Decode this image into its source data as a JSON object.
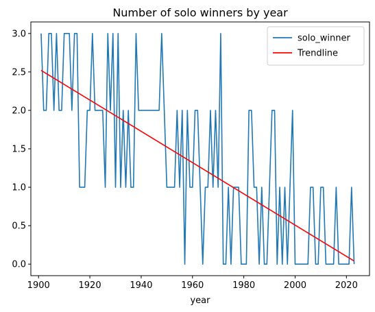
{
  "chart_data": {
    "type": "line",
    "title": "Number of solo winners by year",
    "xlabel": "year",
    "ylabel": "",
    "xlim": [
      1897,
      2029
    ],
    "ylim": [
      -0.15,
      3.15
    ],
    "xticks": [
      1900,
      1920,
      1940,
      1960,
      1980,
      2000,
      2020
    ],
    "xtick_labels": [
      "1900",
      "1920",
      "1940",
      "1960",
      "1980",
      "2000",
      "2020"
    ],
    "yticks": [
      0.0,
      0.5,
      1.0,
      1.5,
      2.0,
      2.5,
      3.0
    ],
    "ytick_labels": [
      "0.0",
      "0.5",
      "1.0",
      "1.5",
      "2.0",
      "2.5",
      "3.0"
    ],
    "grid": false,
    "legend_position": "top-right",
    "series": [
      {
        "name": "solo_winner",
        "color": "#1f77b4",
        "x": [
          1901,
          1902,
          1903,
          1904,
          1905,
          1906,
          1907,
          1908,
          1909,
          1910,
          1911,
          1912,
          1913,
          1914,
          1915,
          1916,
          1917,
          1918,
          1919,
          1920,
          1921,
          1922,
          1923,
          1924,
          1925,
          1926,
          1927,
          1928,
          1929,
          1930,
          1931,
          1932,
          1933,
          1934,
          1935,
          1936,
          1937,
          1938,
          1939,
          1940,
          1941,
          1942,
          1943,
          1944,
          1945,
          1946,
          1947,
          1948,
          1949,
          1950,
          1951,
          1952,
          1953,
          1954,
          1955,
          1956,
          1957,
          1958,
          1959,
          1960,
          1961,
          1962,
          1963,
          1964,
          1965,
          1966,
          1967,
          1968,
          1969,
          1970,
          1971,
          1972,
          1973,
          1974,
          1975,
          1976,
          1977,
          1978,
          1979,
          1980,
          1981,
          1982,
          1983,
          1984,
          1985,
          1986,
          1987,
          1988,
          1989,
          1990,
          1991,
          1992,
          1993,
          1994,
          1995,
          1996,
          1997,
          1998,
          1999,
          2000,
          2001,
          2002,
          2003,
          2004,
          2005,
          2006,
          2007,
          2008,
          2009,
          2010,
          2011,
          2012,
          2013,
          2014,
          2015,
          2016,
          2017,
          2018,
          2019,
          2020,
          2021,
          2022,
          2023
        ],
        "values": [
          3,
          2,
          2,
          3,
          3,
          2,
          3,
          2,
          2,
          3,
          3,
          3,
          2,
          3,
          3,
          1,
          1,
          1,
          2,
          2,
          3,
          2,
          2,
          2,
          2,
          1,
          3,
          2,
          3,
          1,
          3,
          1,
          2,
          1,
          2,
          1,
          1,
          3,
          2,
          2,
          2,
          2,
          2,
          2,
          2,
          2,
          2,
          3,
          2,
          1,
          1,
          1,
          1,
          2,
          1,
          2,
          0,
          2,
          1,
          1,
          2,
          2,
          1,
          0,
          1,
          1,
          2,
          1,
          2,
          1,
          3,
          0,
          0,
          1,
          0,
          1,
          1,
          1,
          0,
          0,
          0,
          2,
          2,
          1,
          1,
          0,
          1,
          0,
          0,
          1,
          2,
          2,
          0,
          1,
          0,
          1,
          0,
          1,
          2,
          0,
          0,
          0,
          0,
          0,
          0,
          1,
          1,
          0,
          0,
          1,
          1,
          0,
          0,
          0,
          0,
          1,
          0,
          0,
          0,
          0,
          0,
          1,
          0
        ]
      },
      {
        "name": "Trendline",
        "color": "#ff0000",
        "x": [
          1901,
          2023
        ],
        "values": [
          2.52,
          0.04
        ]
      }
    ]
  }
}
